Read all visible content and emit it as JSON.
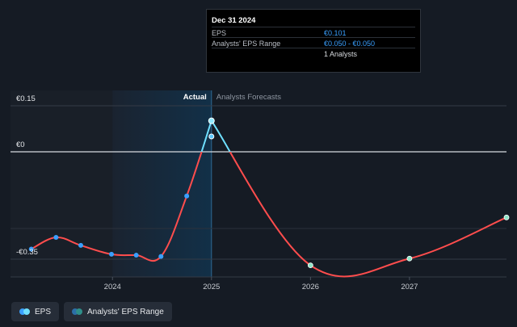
{
  "tooltip": {
    "date": "Dec 31 2024",
    "rows": [
      {
        "label": "EPS",
        "value": "€0.101"
      },
      {
        "label": "Analysts' EPS Range",
        "value": "€0.050 - €0.050"
      },
      {
        "label": "",
        "value": "1 Analysts"
      }
    ]
  },
  "legend": {
    "eps_label": "EPS",
    "range_label": "Analysts' EPS Range"
  },
  "colors": {
    "background": "#151b24",
    "actual_band": "#123048",
    "eps_line": "#ff4d4d",
    "eps_highlight": "#6fe0ff",
    "marker": "#3aa0ff",
    "forecast_marker": "#8ee6c8"
  },
  "chart_data": {
    "type": "line",
    "y_axis_ticks": [
      {
        "value": 0.15,
        "label": "€0.15"
      },
      {
        "value": 0,
        "label": "€0"
      },
      {
        "value": -0.35,
        "label": "-€0.35"
      }
    ],
    "ylim": [
      -0.4,
      0.2
    ],
    "x_ticks": [
      {
        "x": 2024.0,
        "label": "2024"
      },
      {
        "x": 2025.0,
        "label": "2025"
      },
      {
        "x": 2026.0,
        "label": "2026"
      },
      {
        "x": 2027.0,
        "label": "2027"
      }
    ],
    "xlim": [
      2022.97,
      2027.98
    ],
    "divider": {
      "x": 2025.0,
      "left_label": "Actual",
      "right_label": "Analysts Forecasts"
    },
    "series": [
      {
        "name": "EPS",
        "actual": [
          {
            "x": 2023.18,
            "y": -0.317
          },
          {
            "x": 2023.43,
            "y": -0.279
          },
          {
            "x": 2023.68,
            "y": -0.305
          },
          {
            "x": 2023.99,
            "y": -0.334
          },
          {
            "x": 2024.24,
            "y": -0.337
          },
          {
            "x": 2024.49,
            "y": -0.341
          },
          {
            "x": 2024.75,
            "y": -0.144
          },
          {
            "x": 2025.0,
            "y": 0.101
          }
        ],
        "forecast": [
          {
            "x": 2025.0,
            "y": 0.101
          },
          {
            "x": 2026.0,
            "y": -0.37
          },
          {
            "x": 2027.0,
            "y": -0.348
          },
          {
            "x": 2027.98,
            "y": -0.214
          }
        ]
      }
    ],
    "range_points": [
      {
        "x": 2025.0,
        "low": 0.05,
        "high": 0.05
      }
    ]
  }
}
